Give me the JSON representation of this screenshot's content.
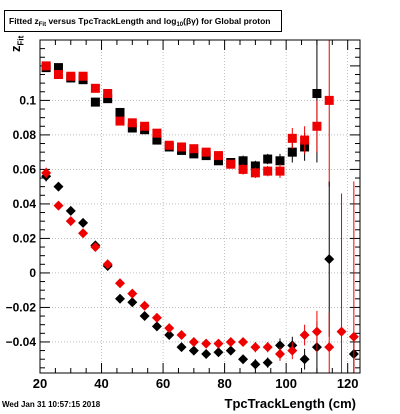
{
  "title": {
    "prefix": "Fitted  z",
    "sub1": "Fit",
    "middle": " versus TpcTrackLength and log",
    "sub2": "10",
    "suffix": "(βγ) for Global proton"
  },
  "axis_labels": {
    "y_main": "z",
    "y_sub": "Fit",
    "x": "TpcTrackLength (cm)"
  },
  "timestamp": "Wed Jan 31 10:57:15 2018",
  "chart_data": {
    "type": "scatter",
    "xlim": [
      20,
      124
    ],
    "ylim": [
      -0.058,
      0.135
    ],
    "x_ticks": [
      20,
      40,
      60,
      80,
      100,
      120
    ],
    "y_ticks": [
      -0.04,
      -0.02,
      0,
      0.02,
      0.04,
      0.06,
      0.08,
      0.1
    ],
    "y_tick_labels": [
      "−0.04",
      "−0.02",
      "0",
      "0.02",
      "0.04",
      "0.06",
      "0.08",
      "0.1"
    ],
    "grid": true,
    "series": [
      {
        "marker": "square",
        "color": "#000000",
        "points": [
          [
            22,
            0.119,
            0.002
          ],
          [
            26,
            0.119,
            0.002
          ],
          [
            30,
            0.113,
            0.002
          ],
          [
            34,
            0.112,
            0.002
          ],
          [
            38,
            0.099,
            0.002
          ],
          [
            42,
            0.101,
            0.002
          ],
          [
            46,
            0.093,
            0.002
          ],
          [
            50,
            0.084,
            0.002
          ],
          [
            54,
            0.083,
            0.002
          ],
          [
            58,
            0.077,
            0.002
          ],
          [
            62,
            0.073,
            0.002
          ],
          [
            66,
            0.071,
            0.002
          ],
          [
            70,
            0.069,
            0.002
          ],
          [
            74,
            0.068,
            0.002
          ],
          [
            78,
            0.065,
            0.002
          ],
          [
            82,
            0.064,
            0.002
          ],
          [
            86,
            0.065,
            0.003
          ],
          [
            90,
            0.062,
            0.003
          ],
          [
            94,
            0.066,
            0.003
          ],
          [
            98,
            0.065,
            0.004
          ],
          [
            102,
            0.07,
            0.006
          ],
          [
            106,
            0.073,
            0.008
          ],
          [
            110,
            0.104,
            0.04
          ]
        ]
      },
      {
        "marker": "square",
        "color": "#ee0000",
        "points": [
          [
            22,
            0.12,
            0.002
          ],
          [
            26,
            0.115,
            0.002
          ],
          [
            30,
            0.114,
            0.002
          ],
          [
            34,
            0.114,
            0.002
          ],
          [
            38,
            0.107,
            0.002
          ],
          [
            42,
            0.104,
            0.002
          ],
          [
            46,
            0.088,
            0.002
          ],
          [
            50,
            0.087,
            0.002
          ],
          [
            54,
            0.085,
            0.002
          ],
          [
            58,
            0.081,
            0.002
          ],
          [
            62,
            0.074,
            0.002
          ],
          [
            66,
            0.073,
            0.002
          ],
          [
            70,
            0.072,
            0.002
          ],
          [
            74,
            0.07,
            0.002
          ],
          [
            78,
            0.068,
            0.002
          ],
          [
            82,
            0.063,
            0.002
          ],
          [
            86,
            0.06,
            0.003
          ],
          [
            90,
            0.058,
            0.003
          ],
          [
            94,
            0.059,
            0.003
          ],
          [
            98,
            0.059,
            0.004
          ],
          [
            102,
            0.078,
            0.006
          ],
          [
            106,
            0.077,
            0.008
          ],
          [
            110,
            0.085,
            0.015
          ],
          [
            114,
            0.1,
            0.05
          ]
        ]
      },
      {
        "marker": "diamond",
        "color": "#000000",
        "points": [
          [
            22,
            0.056,
            0.003
          ],
          [
            26,
            0.05,
            0.002
          ],
          [
            30,
            0.036,
            0.002
          ],
          [
            34,
            0.029,
            0.002
          ],
          [
            38,
            0.016,
            0.002
          ],
          [
            42,
            0.004,
            0.002
          ],
          [
            46,
            -0.015,
            0.002
          ],
          [
            50,
            -0.017,
            0.002
          ],
          [
            54,
            -0.025,
            0.002
          ],
          [
            58,
            -0.031,
            0.002
          ],
          [
            62,
            -0.036,
            0.002
          ],
          [
            66,
            -0.043,
            0.002
          ],
          [
            70,
            -0.045,
            0.002
          ],
          [
            74,
            -0.047,
            0.002
          ],
          [
            78,
            -0.046,
            0.002
          ],
          [
            82,
            -0.045,
            0.002
          ],
          [
            86,
            -0.05,
            0.002
          ],
          [
            90,
            -0.053,
            0.003
          ],
          [
            94,
            -0.052,
            0.003
          ],
          [
            98,
            -0.042,
            0.004
          ],
          [
            102,
            -0.042,
            0.005
          ],
          [
            106,
            -0.05,
            0.006
          ],
          [
            110,
            -0.043,
            0.015
          ],
          [
            114,
            0.008,
            0.045
          ],
          [
            122,
            -0.047,
            0.012
          ]
        ]
      },
      {
        "marker": "diamond",
        "color": "#ee0000",
        "points": [
          [
            22,
            0.058,
            0.003
          ],
          [
            26,
            0.039,
            0.002
          ],
          [
            30,
            0.03,
            0.002
          ],
          [
            34,
            0.023,
            0.002
          ],
          [
            38,
            0.015,
            0.002
          ],
          [
            42,
            0.005,
            0.002
          ],
          [
            46,
            -0.006,
            0.002
          ],
          [
            50,
            -0.012,
            0.002
          ],
          [
            54,
            -0.019,
            0.002
          ],
          [
            58,
            -0.026,
            0.002
          ],
          [
            62,
            -0.032,
            0.002
          ],
          [
            66,
            -0.036,
            0.002
          ],
          [
            70,
            -0.04,
            0.002
          ],
          [
            74,
            -0.041,
            0.002
          ],
          [
            78,
            -0.041,
            0.002
          ],
          [
            82,
            -0.04,
            0.002
          ],
          [
            86,
            -0.04,
            0.002
          ],
          [
            90,
            -0.043,
            0.003
          ],
          [
            94,
            -0.043,
            0.003
          ],
          [
            98,
            -0.047,
            0.004
          ],
          [
            102,
            -0.045,
            0.005
          ],
          [
            106,
            -0.036,
            0.006
          ],
          [
            110,
            -0.034,
            0.012
          ],
          [
            114,
            -0.043,
            0.02
          ],
          [
            118,
            -0.034,
            0.08
          ],
          [
            122,
            -0.037,
            0.09
          ]
        ]
      }
    ]
  }
}
